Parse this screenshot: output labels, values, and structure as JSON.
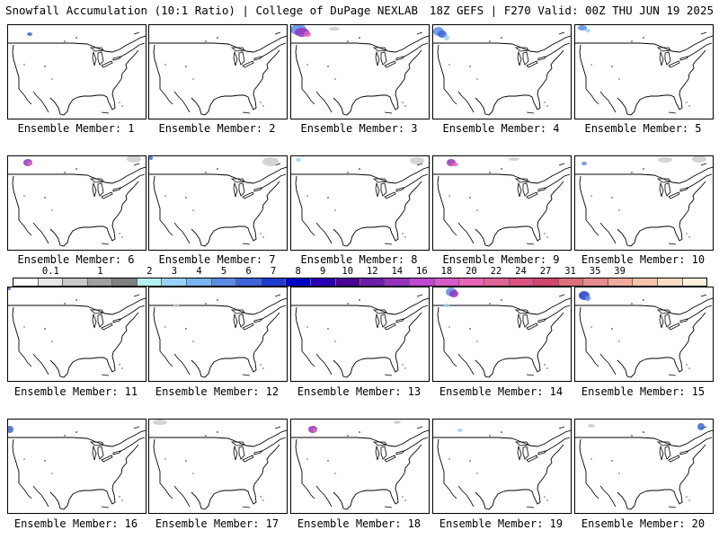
{
  "header": {
    "title_left": "Snowfall Accumulation (10:1 Ratio) | College of DuPage NEXLAB",
    "title_right": "18Z GEFS | F270 Valid: 00Z THU JUN 19 2025"
  },
  "members": [
    {
      "label": "Ensemble Member: 1"
    },
    {
      "label": "Ensemble Member: 2"
    },
    {
      "label": "Ensemble Member: 3"
    },
    {
      "label": "Ensemble Member: 4"
    },
    {
      "label": "Ensemble Member: 5"
    },
    {
      "label": "Ensemble Member: 6"
    },
    {
      "label": "Ensemble Member: 7"
    },
    {
      "label": "Ensemble Member: 8"
    },
    {
      "label": "Ensemble Member: 9"
    },
    {
      "label": "Ensemble Member: 10"
    },
    {
      "label": "Ensemble Member: 11"
    },
    {
      "label": "Ensemble Member: 12"
    },
    {
      "label": "Ensemble Member: 13"
    },
    {
      "label": "Ensemble Member: 14"
    },
    {
      "label": "Ensemble Member: 15"
    },
    {
      "label": "Ensemble Member: 16"
    },
    {
      "label": "Ensemble Member: 17"
    },
    {
      "label": "Ensemble Member: 18"
    },
    {
      "label": "Ensemble Member: 19"
    },
    {
      "label": "Ensemble Member: 20"
    }
  ],
  "legend": {
    "ticks": [
      "0.1",
      "1",
      "2",
      "3",
      "4",
      "5",
      "6",
      "7",
      "8",
      "9",
      "10",
      "12",
      "14",
      "16",
      "18",
      "20",
      "22",
      "24",
      "27",
      "31",
      "35",
      "39"
    ],
    "colors": [
      "#ffffff",
      "#e6e6e6",
      "#c8c8c8",
      "#a0a0a0",
      "#808080",
      "#b4f0f0",
      "#96d2fa",
      "#78b4f0",
      "#5a8ce6",
      "#3c64dc",
      "#1e3cd2",
      "#0000c8",
      "#2800b4",
      "#4b0096",
      "#6e1eaa",
      "#9632be",
      "#be46d2",
      "#d75ac8",
      "#e664b4",
      "#e06496",
      "#dc5082",
      "#d2466e",
      "#dc6e78",
      "#e68c8c",
      "#f0aa9b",
      "#f5c3aa",
      "#fadcc3",
      "#fff0dc"
    ]
  }
}
